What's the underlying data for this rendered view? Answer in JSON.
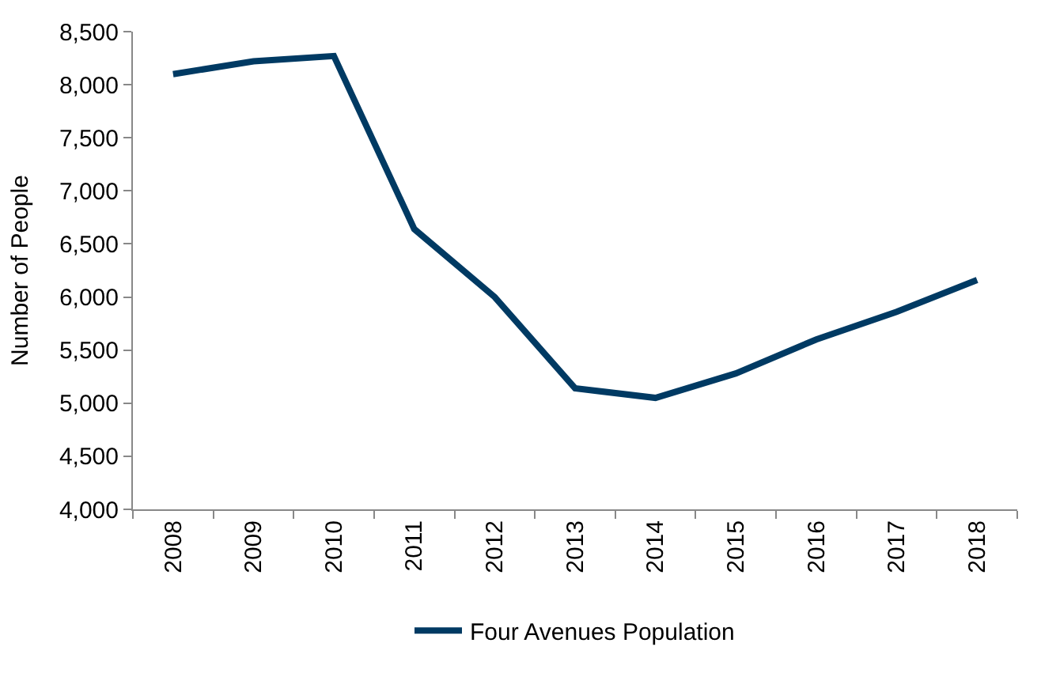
{
  "chart_data": {
    "type": "line",
    "ylabel": "Number of People",
    "categories": [
      "2008",
      "2009",
      "2010",
      "2011",
      "2012",
      "2013",
      "2014",
      "2015",
      "2016",
      "2017",
      "2018"
    ],
    "series": [
      {
        "name": "Four Avenues Population",
        "color": "#003a63",
        "values": [
          8100,
          8220,
          8270,
          6640,
          6000,
          5140,
          5050,
          5280,
          5600,
          5860,
          6160
        ]
      }
    ],
    "ylim": [
      4000,
      8500
    ],
    "yticks": [
      {
        "value": 4000,
        "label": "4,000"
      },
      {
        "value": 4500,
        "label": "4,500"
      },
      {
        "value": 5000,
        "label": "5,000"
      },
      {
        "value": 5500,
        "label": "5,500"
      },
      {
        "value": 6000,
        "label": "6,000"
      },
      {
        "value": 6500,
        "label": "6,500"
      },
      {
        "value": 7000,
        "label": "7,000"
      },
      {
        "value": 7500,
        "label": "7,500"
      },
      {
        "value": 8000,
        "label": "8,000"
      },
      {
        "value": 8500,
        "label": "8,500"
      }
    ],
    "legend": "bottom",
    "marker": "none",
    "line_style": "solid"
  }
}
